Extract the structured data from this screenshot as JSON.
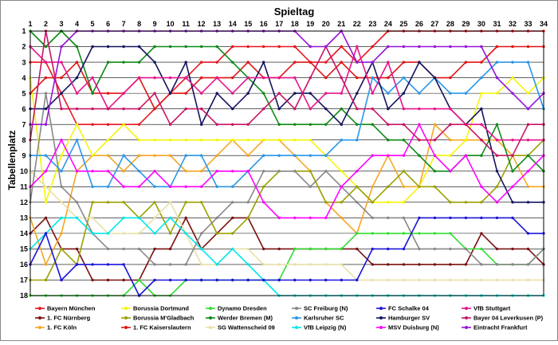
{
  "chart_data": {
    "type": "line",
    "title": "Spieltag",
    "xlabel": "Spieltag",
    "ylabel": "Tabellenplatz",
    "x": [
      1,
      2,
      3,
      4,
      5,
      6,
      7,
      8,
      9,
      10,
      11,
      12,
      13,
      14,
      15,
      16,
      17,
      18,
      19,
      20,
      21,
      22,
      23,
      24,
      25,
      26,
      27,
      28,
      29,
      30,
      31,
      32,
      33,
      34
    ],
    "y_ticks": [
      1,
      2,
      3,
      4,
      5,
      6,
      7,
      8,
      9,
      10,
      11,
      12,
      13,
      14,
      15,
      16,
      17,
      18
    ],
    "ylim": [
      18,
      1
    ],
    "grid": true,
    "legend_position": "bottom",
    "series": [
      {
        "name": "Bayern München",
        "color": "#e8161f",
        "values": [
          3,
          3,
          5,
          7,
          7,
          7,
          7,
          7,
          6,
          5,
          4,
          3,
          3,
          2,
          2,
          2,
          2,
          2,
          3,
          3,
          2,
          3,
          2,
          1,
          1,
          1,
          1,
          1,
          1,
          1,
          1,
          1,
          1,
          1
        ]
      },
      {
        "name": "1. FC Nürnberg",
        "color": "#7a1010",
        "values": [
          14,
          13,
          15,
          15,
          17,
          17,
          17,
          17,
          15,
          15,
          13,
          15,
          14,
          13,
          13,
          15,
          15,
          15,
          15,
          15,
          15,
          15,
          16,
          16,
          16,
          16,
          16,
          16,
          16,
          14,
          15,
          15,
          15,
          16
        ]
      },
      {
        "name": "1. FC Köln",
        "color": "#f5a623",
        "values": [
          13,
          16,
          14,
          10,
          9,
          9,
          10,
          9,
          9,
          9,
          10,
          10,
          9,
          8,
          9,
          8,
          8,
          9,
          10,
          12,
          13,
          14,
          11,
          9,
          11,
          11,
          7,
          8,
          8,
          8,
          8,
          9,
          11,
          11
        ]
      },
      {
        "name": "Borussia Dortmund",
        "color": "#f5f50a",
        "values": [
          4,
          12,
          9,
          7,
          9,
          8,
          7,
          8,
          8,
          8,
          8,
          8,
          8,
          8,
          8,
          8,
          8,
          8,
          8,
          9,
          10,
          11,
          12,
          12,
          12,
          11,
          9,
          9,
          8,
          5,
          5,
          4,
          5,
          4
        ]
      },
      {
        "name": "Borussia M'Gladbach",
        "color": "#9aa000",
        "values": [
          17,
          17,
          15,
          16,
          12,
          12,
          12,
          13,
          12,
          14,
          12,
          12,
          14,
          14,
          13,
          11,
          10,
          10,
          10,
          12,
          12,
          11,
          12,
          11,
          10,
          11,
          11,
          12,
          12,
          12,
          11,
          9,
          9,
          8
        ]
      },
      {
        "name": "1. FC Kaiserslautern",
        "color": "#e01414",
        "values": [
          5,
          4,
          4,
          3,
          5,
          5,
          5,
          4,
          6,
          5,
          5,
          4,
          4,
          4,
          3,
          4,
          4,
          3,
          3,
          4,
          3,
          4,
          4,
          4,
          3,
          3,
          4,
          4,
          3,
          3,
          2,
          2,
          2,
          2
        ]
      },
      {
        "name": "Dynamo Dresden",
        "color": "#33dd33",
        "values": [
          18,
          18,
          18,
          18,
          18,
          18,
          18,
          17,
          18,
          18,
          17,
          17,
          17,
          17,
          17,
          17,
          17,
          15,
          15,
          15,
          15,
          14,
          14,
          14,
          14,
          14,
          14,
          14,
          15,
          15,
          16,
          16,
          16,
          15
        ]
      },
      {
        "name": "Werder Bremen (M)",
        "color": "#0e8a17",
        "values": [
          1,
          2,
          1,
          2,
          5,
          3,
          3,
          3,
          2,
          2,
          2,
          2,
          2,
          3,
          4,
          5,
          7,
          7,
          7,
          7,
          6,
          7,
          7,
          8,
          8,
          9,
          10,
          10,
          9,
          9,
          7,
          10,
          9,
          10
        ]
      },
      {
        "name": "SG Wattenscheid 09",
        "color": "#e8e0a8",
        "values": [
          10,
          11,
          12,
          13,
          13,
          14,
          14,
          14,
          13,
          12,
          14,
          16,
          16,
          15,
          15,
          16,
          16,
          16,
          16,
          16,
          16,
          17,
          17,
          17,
          17,
          17,
          17,
          17,
          17,
          17,
          17,
          17,
          17,
          17
        ]
      },
      {
        "name": "SC Freiburg (N)",
        "color": "#888888",
        "values": [
          12,
          5,
          11,
          12,
          14,
          15,
          15,
          15,
          16,
          16,
          16,
          14,
          13,
          12,
          12,
          10,
          10,
          10,
          11,
          10,
          11,
          12,
          13,
          13,
          13,
          15,
          15,
          15,
          15,
          16,
          16,
          16,
          16,
          15
        ]
      },
      {
        "name": "Karlsruher SC",
        "color": "#2a96e8",
        "values": [
          9,
          9,
          10,
          8,
          11,
          11,
          9,
          10,
          11,
          11,
          9,
          9,
          11,
          11,
          10,
          9,
          9,
          9,
          9,
          9,
          8,
          8,
          4,
          5,
          4,
          5,
          4,
          5,
          5,
          4,
          3,
          3,
          3,
          6
        ]
      },
      {
        "name": "VfB Leipzig (N)",
        "color": "#00e8e8",
        "values": [
          15,
          14,
          13,
          13,
          14,
          14,
          13,
          13,
          14,
          13,
          14,
          15,
          16,
          15,
          16,
          17,
          18,
          18,
          18,
          18,
          18,
          18,
          18,
          18,
          18,
          18,
          18,
          18,
          18,
          18,
          18,
          18,
          18,
          18
        ]
      },
      {
        "name": "FC Schalke 04",
        "color": "#1a14d8",
        "values": [
          16,
          14,
          17,
          16,
          16,
          16,
          16,
          18,
          17,
          17,
          17,
          17,
          17,
          17,
          17,
          17,
          17,
          17,
          17,
          17,
          17,
          17,
          15,
          15,
          15,
          13,
          13,
          13,
          13,
          13,
          13,
          13,
          14,
          14
        ]
      },
      {
        "name": "Hamburger SV",
        "color": "#141460",
        "values": [
          6,
          6,
          5,
          4,
          2,
          2,
          2,
          2,
          3,
          5,
          3,
          7,
          5,
          6,
          5,
          3,
          6,
          5,
          5,
          6,
          7,
          5,
          3,
          6,
          5,
          3,
          4,
          6,
          7,
          6,
          10,
          12,
          12,
          12
        ]
      },
      {
        "name": "MSV Duisburg (N)",
        "color": "#ff00ff",
        "values": [
          11,
          10,
          8,
          10,
          10,
          10,
          11,
          11,
          10,
          11,
          11,
          11,
          10,
          10,
          10,
          12,
          13,
          13,
          13,
          13,
          11,
          10,
          9,
          9,
          9,
          7,
          9,
          10,
          9,
          11,
          12,
          11,
          10,
          9
        ]
      },
      {
        "name": "VfB Stuttgart",
        "color": "#e6148c",
        "values": [
          2,
          3,
          3,
          5,
          4,
          6,
          5,
          4,
          4,
          4,
          4,
          5,
          4,
          5,
          4,
          4,
          4,
          4,
          6,
          5,
          5,
          2,
          5,
          3,
          6,
          6,
          6,
          6,
          7,
          7,
          8,
          8,
          8,
          8
        ]
      },
      {
        "name": "Bayer 04 Leverkusen (P)",
        "color": "#c81464",
        "values": [
          8,
          1,
          6,
          6,
          6,
          6,
          6,
          6,
          5,
          7,
          6,
          6,
          7,
          7,
          7,
          6,
          5,
          6,
          4,
          2,
          4,
          6,
          6,
          7,
          7,
          8,
          8,
          7,
          7,
          8,
          9,
          9,
          7,
          7
        ]
      },
      {
        "name": "Eintracht Frankfurt",
        "color": "#9614d8",
        "values": [
          7,
          7,
          2,
          1,
          1,
          1,
          1,
          1,
          1,
          1,
          1,
          1,
          1,
          1,
          1,
          1,
          1,
          1,
          2,
          2,
          1,
          3,
          3,
          2,
          2,
          2,
          2,
          2,
          2,
          2,
          4,
          5,
          6,
          5
        ]
      }
    ]
  }
}
